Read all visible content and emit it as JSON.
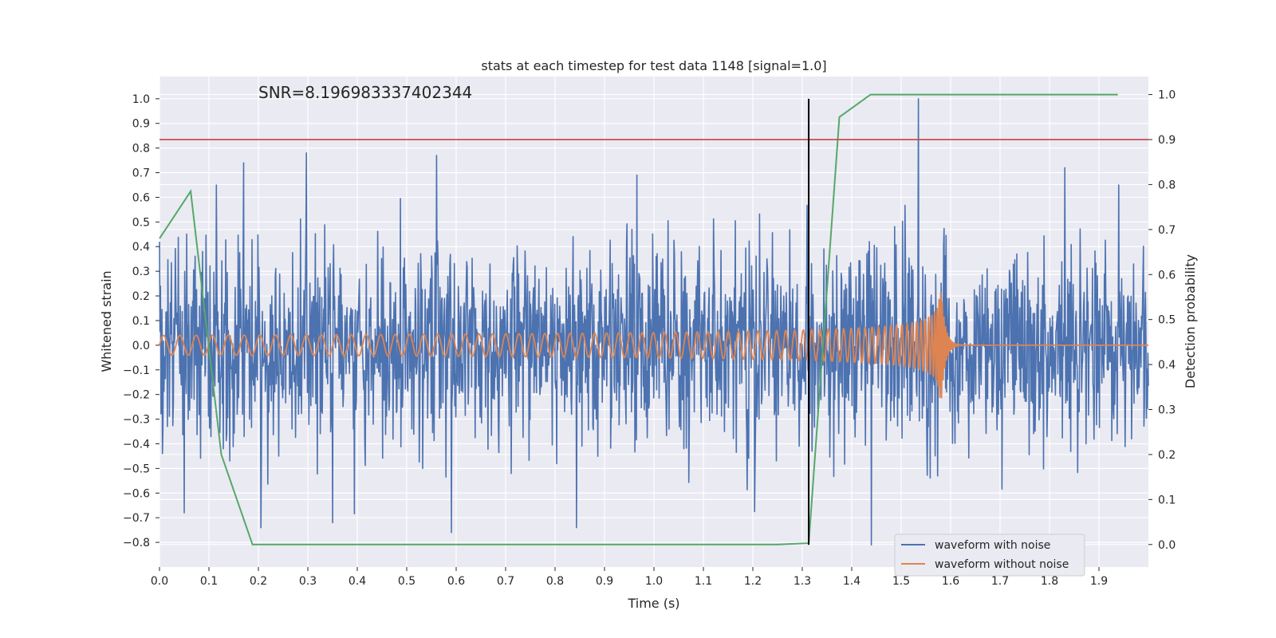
{
  "chart_data": {
    "type": "line",
    "title": "stats at each timestep for test data 1148 [signal=1.0]",
    "xlabel": "Time (s)",
    "ylabel_left": "Whitened strain",
    "ylabel_right": "Detection probability",
    "annotation": "SNR=8.196983337402344",
    "xlim": [
      0.0,
      2.0
    ],
    "ylim_left": [
      -0.9,
      1.09
    ],
    "ylim_right": [
      -0.05,
      1.04
    ],
    "x_ticks": [
      "0.0",
      "0.1",
      "0.2",
      "0.3",
      "0.4",
      "0.5",
      "0.6",
      "0.7",
      "0.8",
      "0.9",
      "1.0",
      "1.1",
      "1.2",
      "1.3",
      "1.4",
      "1.5",
      "1.6",
      "1.7",
      "1.8",
      "1.9"
    ],
    "y_left_ticks": [
      "-0.8",
      "-0.7",
      "-0.6",
      "-0.5",
      "-0.4",
      "-0.3",
      "-0.2",
      "-0.1",
      "0.0",
      "0.1",
      "0.2",
      "0.3",
      "0.4",
      "0.5",
      "0.6",
      "0.7",
      "0.8",
      "0.9",
      "1.0"
    ],
    "y_right_ticks": [
      "0.0",
      "0.1",
      "0.2",
      "0.3",
      "0.4",
      "0.5",
      "0.6",
      "0.7",
      "0.8",
      "0.9",
      "1.0"
    ],
    "legend": [
      {
        "label": "waveform with noise",
        "color": "#4c72b0"
      },
      {
        "label": "waveform without noise",
        "color": "#dd8452"
      }
    ],
    "threshold": {
      "axis": "right",
      "value": 0.9,
      "color": "#c44e52"
    },
    "event_marker": {
      "x": 1.313,
      "y_from": -0.81,
      "y_to": 1.0,
      "color": "#000000"
    },
    "detection_probability": {
      "color": "#55a868",
      "x": [
        0.0,
        0.063,
        0.125,
        0.188,
        0.25,
        0.313,
        0.375,
        0.438,
        0.5,
        0.563,
        0.625,
        0.688,
        0.75,
        0.813,
        0.875,
        0.938,
        1.0,
        1.063,
        1.125,
        1.188,
        1.25,
        1.313,
        1.375,
        1.438,
        1.5,
        1.563,
        1.625,
        1.688,
        1.75,
        1.813,
        1.875,
        1.938
      ],
      "y": [
        0.68,
        0.785,
        0.2,
        0.0,
        0.0,
        0.0,
        0.0,
        0.0,
        0.0,
        0.0,
        0.0,
        0.0,
        0.0,
        0.0,
        0.0,
        0.0,
        0.0,
        0.0,
        0.0,
        0.0,
        0.0,
        0.003,
        0.95,
        1.0,
        1.0,
        1.0,
        1.0,
        1.0,
        1.0,
        1.0,
        1.0,
        1.0
      ]
    },
    "noisy_waveform": {
      "color": "#4c72b0",
      "amplitude_std": 0.2,
      "peaks": [
        {
          "x": 0.0,
          "y": 0.42
        },
        {
          "x": 0.115,
          "y": 0.65
        },
        {
          "x": 0.17,
          "y": 0.74
        },
        {
          "x": 0.297,
          "y": 0.78
        },
        {
          "x": 0.56,
          "y": 0.77
        },
        {
          "x": 0.965,
          "y": 0.69
        },
        {
          "x": 1.535,
          "y": 1.0
        },
        {
          "x": 1.94,
          "y": 0.65
        },
        {
          "x": 0.35,
          "y": -0.72
        },
        {
          "x": 0.205,
          "y": -0.74
        },
        {
          "x": 0.59,
          "y": -0.76
        },
        {
          "x": 0.843,
          "y": -0.74
        },
        {
          "x": 1.44,
          "y": -0.81
        },
        {
          "x": 0.05,
          "y": -0.68
        }
      ]
    },
    "clean_waveform": {
      "color": "#dd8452",
      "start_amplitude": 0.04,
      "merger_amplitude": 0.26,
      "merger_time": 1.58,
      "start_frequency_hz": 30,
      "merger_frequency_hz": 300
    }
  }
}
